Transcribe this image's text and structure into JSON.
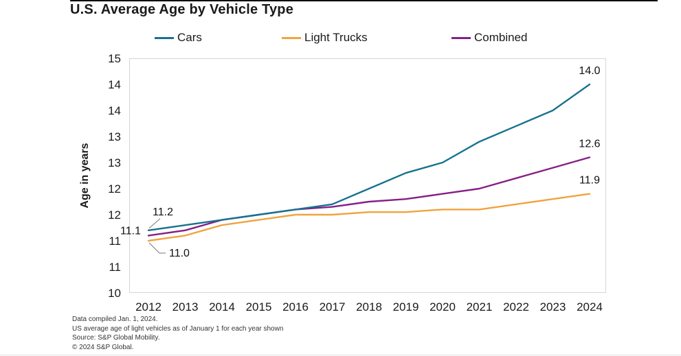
{
  "title": "U.S. Average Age by Vehicle Type",
  "legend": {
    "items": [
      {
        "label": "Cars"
      },
      {
        "label": "Light Trucks"
      },
      {
        "label": "Combined"
      }
    ]
  },
  "y_axis": {
    "label": "Age in years",
    "tick_labels_top_to_bottom": [
      "15",
      "14",
      "14",
      "13",
      "13",
      "12",
      "12",
      "11",
      "11",
      "10"
    ],
    "value_min": 10,
    "value_max": 14.5
  },
  "x_axis": {
    "tick_labels": [
      "2012",
      "2013",
      "2014",
      "2015",
      "2016",
      "2017",
      "2018",
      "2019",
      "2020",
      "2021",
      "2022",
      "2023",
      "2024"
    ]
  },
  "chart_data": {
    "type": "line",
    "title": "U.S. Average Age by Vehicle Type",
    "xlabel": "",
    "ylabel": "Age in years",
    "x": [
      2012,
      2013,
      2014,
      2015,
      2016,
      2017,
      2018,
      2019,
      2020,
      2021,
      2022,
      2023,
      2024
    ],
    "ylim": [
      10,
      14.5
    ],
    "grid": false,
    "legend_position": "top",
    "series": [
      {
        "name": "Cars",
        "color": "#17728f",
        "values": [
          11.2,
          11.3,
          11.4,
          11.5,
          11.6,
          11.7,
          12.0,
          12.3,
          12.5,
          12.9,
          13.2,
          13.5,
          14.0
        ],
        "start_label": "11.2",
        "end_label": "14.0"
      },
      {
        "name": "Light Trucks",
        "color": "#f0a33e",
        "values": [
          11.0,
          11.1,
          11.3,
          11.4,
          11.5,
          11.5,
          11.55,
          11.55,
          11.6,
          11.6,
          11.7,
          11.8,
          11.9
        ],
        "start_label": "11.0",
        "end_label": "11.9"
      },
      {
        "name": "Combined",
        "color": "#861f87",
        "values": [
          11.1,
          11.2,
          11.4,
          11.5,
          11.6,
          11.65,
          11.75,
          11.8,
          11.9,
          12.0,
          12.2,
          12.4,
          12.6
        ],
        "start_label": "11.1",
        "end_label": "12.6"
      }
    ]
  },
  "footer": {
    "lines": [
      "Data compiled Jan. 1, 2024.",
      "US average age of light vehicles as of January 1 for each year shown",
      "Source: S&P Global Mobility.",
      "© 2024 S&P Global."
    ]
  }
}
